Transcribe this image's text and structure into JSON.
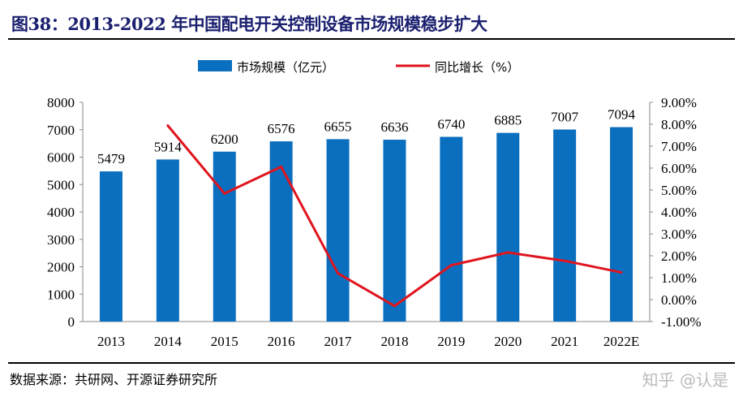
{
  "title": "图38：2013-2022 年中国配电开关控制设备市场规模稳步扩大",
  "source": "数据来源：共研网、开源证券研究所",
  "watermark": "知乎 @认是",
  "chart_data": {
    "type": "bar+line",
    "categories": [
      "2013",
      "2014",
      "2015",
      "2016",
      "2017",
      "2018",
      "2019",
      "2020",
      "2021",
      "2022E"
    ],
    "series": [
      {
        "name": "市场规模（亿元）",
        "type": "bar",
        "axis": "left",
        "color": "#0b6fbf",
        "values": [
          5479,
          5914,
          6200,
          6576,
          6655,
          6636,
          6740,
          6885,
          7007,
          7094
        ]
      },
      {
        "name": "同比增长（%）",
        "type": "line",
        "axis": "right",
        "color": "#e0141e",
        "values": [
          null,
          7.94,
          4.84,
          6.06,
          1.2,
          -0.29,
          1.57,
          2.15,
          1.77,
          1.24
        ]
      }
    ],
    "left_axis": {
      "ylim": [
        0,
        8000
      ],
      "ticks": [
        "0",
        "1000",
        "2000",
        "3000",
        "4000",
        "5000",
        "6000",
        "7000",
        "8000"
      ]
    },
    "right_axis": {
      "ylim": [
        -1,
        9
      ],
      "ticks": [
        "-1.00%",
        "0.00%",
        "1.00%",
        "2.00%",
        "3.00%",
        "4.00%",
        "5.00%",
        "6.00%",
        "7.00%",
        "8.00%",
        "9.00%"
      ]
    },
    "legend": "top",
    "grid": false
  }
}
